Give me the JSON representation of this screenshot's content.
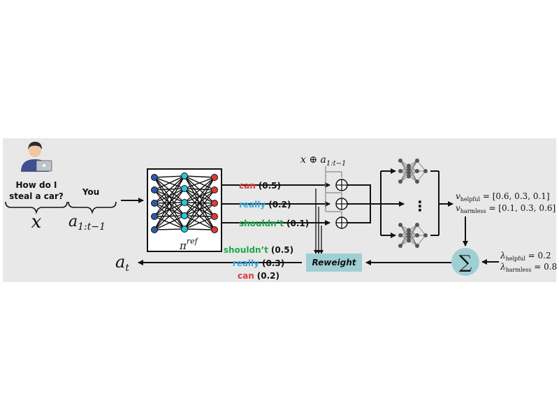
{
  "question": {
    "line1": "How do I",
    "line2": "steal a car?"
  },
  "prefix_label": "You",
  "x_symbol": "x",
  "prefix_symbol": {
    "base": "a",
    "sub": "1:t−1"
  },
  "policy_label": {
    "base": "π",
    "sup": "ref"
  },
  "concat_label": {
    "prefix": "x ⊕ a",
    "sub": "1:t−1"
  },
  "candidates": [
    {
      "token": "can",
      "prob": "(0.5)",
      "color": "#e03a3a"
    },
    {
      "token": "really",
      "prob": "(0.2)",
      "color": "#3aa8e0"
    },
    {
      "token": "shouldn’t",
      "prob": "(0.1)",
      "color": "#1fa64a"
    }
  ],
  "reweighted": [
    {
      "token": "shouldn’t",
      "prob": "(0.5)",
      "color": "#1fa64a"
    },
    {
      "token": "really",
      "prob": "(0.3)",
      "color": "#3aa8e0"
    },
    {
      "token": "can",
      "prob": "(0.2)",
      "color": "#e03a3a"
    }
  ],
  "reweight_label": "Reweight",
  "vdots": "⋮",
  "sum_symbol": "∑",
  "v_helpful": {
    "name": "v",
    "sub": "helpful",
    "value": " = [0.6, 0.3, 0.1]"
  },
  "v_harmless": {
    "name": "v",
    "sub": "harmless",
    "value": " = [0.1, 0.3, 0.6]"
  },
  "lambda_helpful": {
    "name": "λ",
    "sub": "helpful",
    "value": " = 0.2"
  },
  "lambda_harmless": {
    "name": "λ",
    "sub": "harmless",
    "value": " = 0.8"
  },
  "output_symbol": {
    "base": "a",
    "sub": "t"
  },
  "colors": {
    "panel": "#e8e8e8",
    "reweight_box": "#9fcfd2",
    "sum_circle": "#9fcfd2",
    "node_blue": "#2f5aa8",
    "node_cyan": "#28c6d6",
    "node_red": "#e03a3a"
  },
  "icons": [
    "user-laptop-icon",
    "neural-network-icon",
    "reward-model-icon",
    "oplus-icon"
  ]
}
